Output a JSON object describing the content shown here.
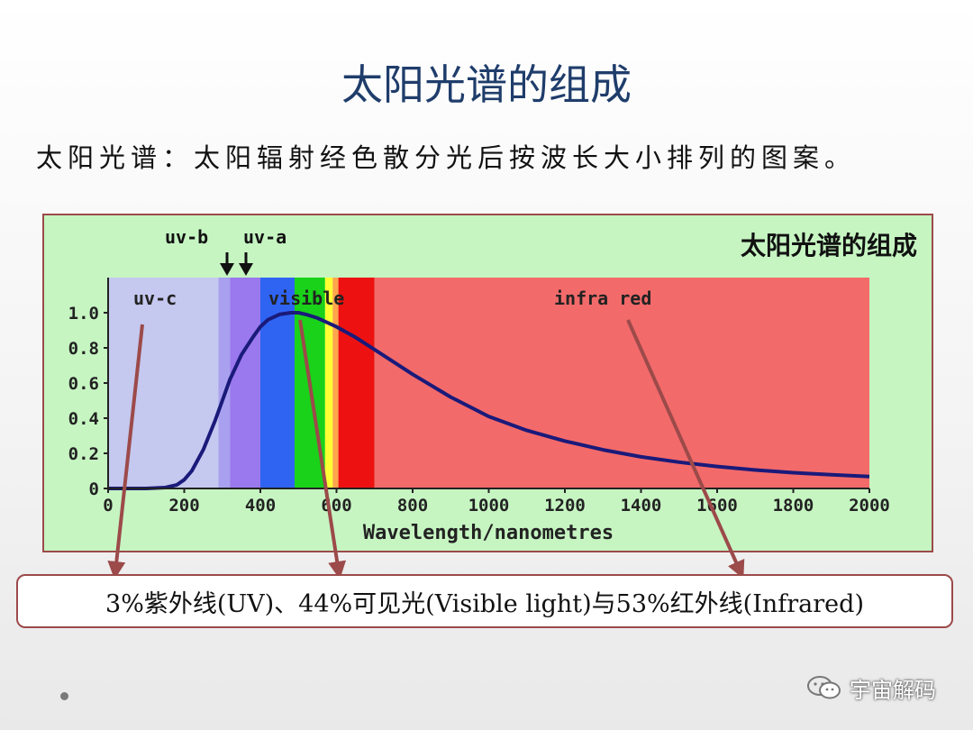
{
  "slide": {
    "title": "太阳光谱的组成",
    "subtitle": "太阳光谱：太阳辐射经色散分光后按波长大小排列的图案。"
  },
  "chart_data": {
    "type": "line",
    "title": "太阳光谱的组成",
    "xlabel": "Wavelength/nanometres",
    "ylabel": "",
    "xlim": [
      0,
      2000
    ],
    "ylim": [
      0,
      1.05
    ],
    "x_ticks": [
      0,
      200,
      400,
      600,
      800,
      1000,
      1200,
      1400,
      1600,
      1800,
      2000
    ],
    "y_ticks": [
      0,
      0.2,
      0.4,
      0.6,
      0.8,
      1.0
    ],
    "x_tick_labels": [
      "0",
      "200",
      "400",
      "600",
      "800",
      "1000",
      "1200",
      "1400",
      "1600",
      "1800",
      "2000"
    ],
    "y_tick_labels": [
      "0",
      "0.2",
      "0.4",
      "0.6",
      "0.8",
      "1.0"
    ],
    "series": [
      {
        "color": "#1a1a7a",
        "x": [
          0,
          100,
          150,
          180,
          200,
          220,
          250,
          280,
          300,
          320,
          350,
          380,
          400,
          420,
          450,
          480,
          500,
          520,
          550,
          600,
          650,
          700,
          800,
          900,
          1000,
          1100,
          1200,
          1300,
          1400,
          1500,
          1600,
          1700,
          1800,
          1900,
          2000
        ],
        "y": [
          0,
          0,
          0.005,
          0.02,
          0.05,
          0.1,
          0.22,
          0.38,
          0.5,
          0.62,
          0.76,
          0.86,
          0.92,
          0.96,
          0.99,
          1.0,
          1.0,
          0.99,
          0.97,
          0.92,
          0.86,
          0.79,
          0.65,
          0.52,
          0.41,
          0.33,
          0.27,
          0.22,
          0.18,
          0.15,
          0.125,
          0.105,
          0.09,
          0.078,
          0.068
        ]
      }
    ],
    "bands": [
      {
        "name": "uv-c",
        "from": 0,
        "to": 290,
        "color": "#c5c8ef"
      },
      {
        "name": "uv-b",
        "from": 290,
        "to": 320,
        "color": "#a9a1f0"
      },
      {
        "name": "uv-a",
        "from": 320,
        "to": 400,
        "color": "#9a78ee"
      },
      {
        "name": "visible-violet-blue",
        "from": 400,
        "to": 490,
        "color": "#2f64f3"
      },
      {
        "name": "visible-green",
        "from": 490,
        "to": 570,
        "color": "#19d219"
      },
      {
        "name": "visible-yellow",
        "from": 570,
        "to": 590,
        "color": "#ffff33"
      },
      {
        "name": "visible-orange",
        "from": 590,
        "to": 605,
        "color": "#ffa64d"
      },
      {
        "name": "visible-red",
        "from": 605,
        "to": 700,
        "color": "#ee1111"
      },
      {
        "name": "infra-red",
        "from": 700,
        "to": 2000,
        "color": "#f36a6a"
      }
    ],
    "band_labels": {
      "uv_c": "uv-c",
      "uv_b": "uv-b",
      "uv_a": "uv-a",
      "visible": "visible",
      "infrared": "infra red"
    },
    "grid": false,
    "background_color": "#c6f5c2",
    "border_color": "#9c4a4a"
  },
  "summary": {
    "text": "3%紫外线(UV)、44%可见光(Visible light)与53%红外线(Infrared)"
  },
  "watermark": {
    "text": "宇宙解码"
  }
}
